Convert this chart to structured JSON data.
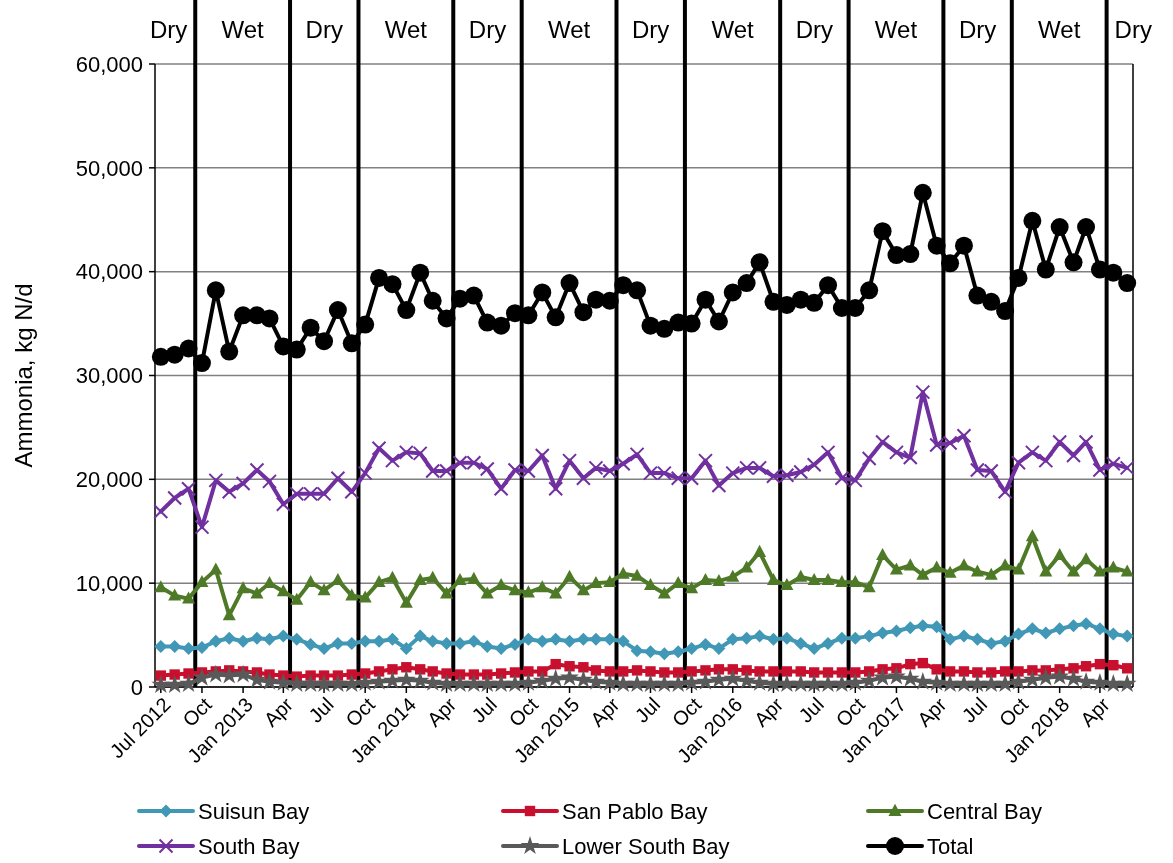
{
  "chart_data": {
    "type": "line",
    "ylabel": "Ammonia, kg N/d",
    "x": [
      "2012-07",
      "2012-08",
      "2012-09",
      "2012-10",
      "2012-11",
      "2012-12",
      "2013-01",
      "2013-02",
      "2013-03",
      "2013-04",
      "2013-05",
      "2013-06",
      "2013-07",
      "2013-08",
      "2013-09",
      "2013-10",
      "2013-11",
      "2013-12",
      "2014-01",
      "2014-02",
      "2014-03",
      "2014-04",
      "2014-05",
      "2014-06",
      "2014-07",
      "2014-08",
      "2014-09",
      "2014-10",
      "2014-11",
      "2014-12",
      "2015-01",
      "2015-02",
      "2015-03",
      "2015-04",
      "2015-05",
      "2015-06",
      "2015-07",
      "2015-08",
      "2015-09",
      "2015-10",
      "2015-11",
      "2015-12",
      "2016-01",
      "2016-02",
      "2016-03",
      "2016-04",
      "2016-05",
      "2016-06",
      "2016-07",
      "2016-08",
      "2016-09",
      "2016-10",
      "2016-11",
      "2016-12",
      "2017-01",
      "2017-02",
      "2017-03",
      "2017-04",
      "2017-05",
      "2017-06",
      "2017-07",
      "2017-08",
      "2017-09",
      "2017-10",
      "2017-11",
      "2017-12",
      "2018-01",
      "2018-02",
      "2018-03",
      "2018-04",
      "2018-05",
      "2018-06"
    ],
    "xlim": [
      "2012-06-18",
      "2018-06-14"
    ],
    "xticks": [
      {
        "value": "2012-07",
        "label": "Jul 2012"
      },
      {
        "value": "2012-10",
        "label": "Oct"
      },
      {
        "value": "2013-01",
        "label": "Jan 2013"
      },
      {
        "value": "2013-04",
        "label": "Apr"
      },
      {
        "value": "2013-07",
        "label": "Jul"
      },
      {
        "value": "2013-10",
        "label": "Oct"
      },
      {
        "value": "2014-01",
        "label": "Jan 2014"
      },
      {
        "value": "2014-04",
        "label": "Apr"
      },
      {
        "value": "2014-07",
        "label": "Jul"
      },
      {
        "value": "2014-10",
        "label": "Oct"
      },
      {
        "value": "2015-01",
        "label": "Jan 2015"
      },
      {
        "value": "2015-04",
        "label": "Apr"
      },
      {
        "value": "2015-07",
        "label": "Jul"
      },
      {
        "value": "2015-10",
        "label": "Oct"
      },
      {
        "value": "2016-01",
        "label": "Jan 2016"
      },
      {
        "value": "2016-04",
        "label": "Apr"
      },
      {
        "value": "2016-07",
        "label": "Jul"
      },
      {
        "value": "2016-10",
        "label": "Oct"
      },
      {
        "value": "2017-01",
        "label": "Jan 2017"
      },
      {
        "value": "2017-04",
        "label": "Apr"
      },
      {
        "value": "2017-07",
        "label": "Jul"
      },
      {
        "value": "2017-10",
        "label": "Oct"
      },
      {
        "value": "2018-01",
        "label": "Jan 2018"
      },
      {
        "value": "2018-04",
        "label": "Apr"
      }
    ],
    "ylim": [
      0,
      60000
    ],
    "yticks": [
      {
        "value": 0,
        "label": "0"
      },
      {
        "value": 10000,
        "label": "10,000"
      },
      {
        "value": 20000,
        "label": "20,000"
      },
      {
        "value": 30000,
        "label": "30,000"
      },
      {
        "value": 40000,
        "label": "40,000"
      },
      {
        "value": 50000,
        "label": "50,000"
      },
      {
        "value": 60000,
        "label": "60,000"
      }
    ],
    "grid": "y",
    "legend": "bottom",
    "ref_lines": [
      {
        "axis": "x",
        "value": "2012-09-16",
        "color": "#000000"
      },
      {
        "axis": "x",
        "value": "2013-04-16",
        "color": "#000000"
      },
      {
        "axis": "x",
        "value": "2013-09-16",
        "color": "#000000"
      },
      {
        "axis": "x",
        "value": "2014-04-16",
        "color": "#000000"
      },
      {
        "axis": "x",
        "value": "2014-09-16",
        "color": "#000000"
      },
      {
        "axis": "x",
        "value": "2015-04-16",
        "color": "#000000"
      },
      {
        "axis": "x",
        "value": "2015-09-16",
        "color": "#000000"
      },
      {
        "axis": "x",
        "value": "2016-04-16",
        "color": "#000000"
      },
      {
        "axis": "x",
        "value": "2016-09-16",
        "color": "#000000"
      },
      {
        "axis": "x",
        "value": "2017-04-16",
        "color": "#000000"
      },
      {
        "axis": "x",
        "value": "2017-09-16",
        "color": "#000000"
      },
      {
        "axis": "x",
        "value": "2018-04-16",
        "color": "#000000"
      }
    ],
    "annotations": [
      "Dry",
      "Wet",
      "Dry",
      "Wet",
      "Dry",
      "Wet",
      "Dry",
      "Wet",
      "Dry",
      "Wet",
      "Dry",
      "Wet",
      "Dry"
    ],
    "series": [
      {
        "name": "Suisun Bay",
        "color": "#4198b6",
        "marker": "diamond",
        "values": [
          3900,
          3900,
          3700,
          3800,
          4400,
          4700,
          4400,
          4700,
          4600,
          4900,
          4600,
          4100,
          3700,
          4200,
          4200,
          4400,
          4400,
          4600,
          3700,
          4900,
          4400,
          4200,
          4200,
          4400,
          3900,
          3700,
          4100,
          4600,
          4400,
          4600,
          4400,
          4600,
          4600,
          4600,
          4400,
          3500,
          3400,
          3200,
          3400,
          3700,
          4100,
          3700,
          4600,
          4700,
          4900,
          4600,
          4700,
          4200,
          3700,
          4200,
          4700,
          4700,
          4900,
          5200,
          5400,
          5700,
          5900,
          5800,
          4600,
          4900,
          4600,
          4200,
          4400,
          5100,
          5600,
          5200,
          5600,
          5900,
          6100,
          5600,
          5100,
          4900
        ]
      },
      {
        "name": "San Pablo Bay",
        "color": "#c8102e",
        "marker": "square",
        "values": [
          1100,
          1200,
          1300,
          1400,
          1500,
          1600,
          1500,
          1400,
          1200,
          1100,
          1000,
          1100,
          1100,
          1100,
          1200,
          1300,
          1500,
          1700,
          1900,
          1700,
          1500,
          1300,
          1200,
          1200,
          1200,
          1300,
          1400,
          1500,
          1500,
          2200,
          2000,
          1900,
          1600,
          1500,
          1500,
          1600,
          1500,
          1400,
          1400,
          1500,
          1600,
          1700,
          1700,
          1600,
          1500,
          1500,
          1500,
          1500,
          1400,
          1400,
          1400,
          1400,
          1500,
          1700,
          1800,
          2200,
          2300,
          1700,
          1500,
          1500,
          1400,
          1400,
          1500,
          1500,
          1600,
          1600,
          1700,
          1800,
          2000,
          2200,
          2100,
          1800
        ]
      },
      {
        "name": "Central Bay",
        "color": "#4e7a27",
        "marker": "triangle",
        "values": [
          9600,
          8800,
          8500,
          10100,
          11300,
          6900,
          9500,
          9000,
          10000,
          9200,
          8400,
          10100,
          9300,
          10300,
          8800,
          8600,
          10100,
          10500,
          8100,
          10300,
          10500,
          9000,
          10300,
          10400,
          9000,
          9800,
          9300,
          9100,
          9600,
          9000,
          10600,
          9300,
          10000,
          10100,
          10900,
          10700,
          9800,
          9000,
          10000,
          9500,
          10300,
          10200,
          10600,
          11500,
          13000,
          10300,
          9800,
          10600,
          10300,
          10300,
          10100,
          10100,
          9600,
          12700,
          11300,
          11700,
          10800,
          11500,
          11000,
          11700,
          11100,
          10800,
          11700,
          11300,
          14500,
          11100,
          12700,
          11100,
          12300,
          11100,
          11500,
          11100
        ]
      },
      {
        "name": "South Bay",
        "color": "#7030a0",
        "marker": "cross",
        "values": [
          16900,
          18200,
          19100,
          15400,
          19900,
          18800,
          19600,
          20900,
          19800,
          17600,
          18600,
          18600,
          18600,
          20100,
          18800,
          20600,
          23000,
          21800,
          22600,
          22500,
          20800,
          20800,
          21600,
          21600,
          21000,
          19100,
          20900,
          20800,
          22300,
          19100,
          21800,
          20100,
          21100,
          20800,
          21500,
          22400,
          20600,
          20600,
          20100,
          20100,
          21800,
          19400,
          20600,
          21100,
          21100,
          20300,
          20400,
          20700,
          21400,
          22600,
          20100,
          19900,
          22000,
          23600,
          22600,
          22100,
          28400,
          23300,
          23500,
          24200,
          20900,
          20800,
          18800,
          21600,
          22600,
          21800,
          23600,
          22300,
          23600,
          20900,
          21500,
          21100
        ]
      },
      {
        "name": "Lower South Bay",
        "color": "#595959",
        "marker": "star",
        "values": [
          200,
          200,
          300,
          900,
          1200,
          1100,
          1200,
          700,
          500,
          400,
          300,
          300,
          300,
          300,
          300,
          400,
          500,
          600,
          700,
          600,
          400,
          300,
          300,
          300,
          300,
          300,
          300,
          400,
          600,
          800,
          900,
          700,
          500,
          400,
          300,
          300,
          300,
          300,
          300,
          400,
          500,
          700,
          800,
          600,
          400,
          300,
          300,
          300,
          300,
          300,
          300,
          400,
          600,
          900,
          1000,
          800,
          500,
          400,
          300,
          300,
          300,
          300,
          300,
          500,
          700,
          900,
          1000,
          800,
          500,
          400,
          300,
          300
        ]
      },
      {
        "name": "Total",
        "color": "#000000",
        "marker": "circle",
        "values": [
          31800,
          32000,
          32600,
          31200,
          38200,
          32300,
          35800,
          35800,
          35500,
          32800,
          32500,
          34600,
          33300,
          36300,
          33100,
          34900,
          39400,
          38800,
          36300,
          39900,
          37200,
          35500,
          37400,
          37700,
          35100,
          34800,
          36000,
          35800,
          38000,
          35600,
          38900,
          36100,
          37300,
          37200,
          38700,
          38200,
          34800,
          34500,
          35100,
          35000,
          37300,
          35200,
          38000,
          38900,
          40900,
          37100,
          36800,
          37300,
          37000,
          38700,
          36500,
          36500,
          38200,
          43900,
          41600,
          41700,
          47600,
          42500,
          40800,
          42500,
          37700,
          37100,
          36200,
          39400,
          44900,
          40200,
          44300,
          40900,
          44300,
          40200,
          39900,
          38900
        ]
      }
    ]
  }
}
